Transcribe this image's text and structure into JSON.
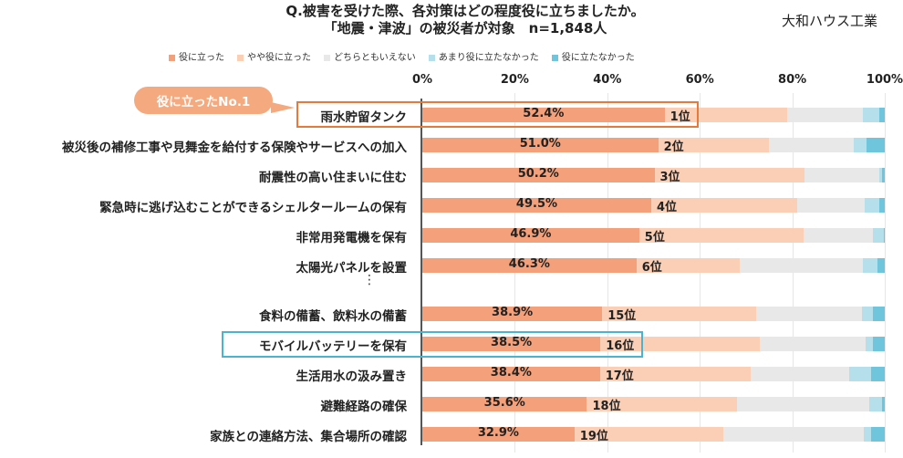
{
  "title_line1": "Q.被害を受けた際、各対策はどの程度役に立ちましたか。",
  "title_line2": "「地震・津波」の被災者が対象　n=1,848人",
  "brand": "大和ハウス工業",
  "callout": "役に立ったNo.1",
  "ellipsis": "⋮",
  "colors": {
    "s1": "#f4a07a",
    "s2": "#fbcfb5",
    "s3": "#e8e8e8",
    "s4": "#b5dfea",
    "s5": "#6ec5dc",
    "highlight_orange": "#e57a3c",
    "highlight_blue": "#4ab3cf"
  },
  "chart_data": {
    "type": "bar",
    "orientation": "horizontal",
    "stacked": true,
    "xlim": [
      0,
      100
    ],
    "ticks": [
      "0%",
      "20%",
      "40%",
      "60%",
      "80%",
      "100%"
    ],
    "series": [
      {
        "name": "役に立った",
        "color": "#f4a07a"
      },
      {
        "name": "やや役に立った",
        "color": "#fbcfb5"
      },
      {
        "name": "どちらともいえない",
        "color": "#e8e8e8"
      },
      {
        "name": "あまり役に立たなかった",
        "color": "#b5dfea"
      },
      {
        "name": "役に立たなかった",
        "color": "#6ec5dc"
      }
    ],
    "rows": [
      {
        "label": "雨水貯留タンク",
        "value_label": "52.4%",
        "rank": "1位",
        "values": [
          52.4,
          26.5,
          16.4,
          3.5,
          1.2
        ]
      },
      {
        "label": "被災後の補修工事や見舞金を給付する保険やサービスへの加入",
        "value_label": "51.0%",
        "rank": "2位",
        "values": [
          51.0,
          24.0,
          18.2,
          2.8,
          4.0
        ]
      },
      {
        "label": "耐震性の高い住まいに住む",
        "value_label": "50.2%",
        "rank": "3位",
        "values": [
          50.2,
          32.4,
          16.2,
          0.6,
          0.6
        ]
      },
      {
        "label": "緊急時に逃げ込むことができるシェルタールームの保有",
        "value_label": "49.5%",
        "rank": "4位",
        "values": [
          49.5,
          31.5,
          14.6,
          3.3,
          1.1
        ]
      },
      {
        "label": "非常用発電機を保有",
        "value_label": "46.9%",
        "rank": "5位",
        "values": [
          46.9,
          35.6,
          15.0,
          2.3,
          0.2
        ]
      },
      {
        "label": "太陽光パネルを設置",
        "value_label": "46.3%",
        "rank": "6位",
        "values": [
          46.3,
          22.4,
          26.6,
          3.2,
          1.5
        ]
      },
      {
        "label": "食料の備蓄、飲料水の備蓄",
        "value_label": "38.9%",
        "rank": "15位",
        "values": [
          38.9,
          33.3,
          22.9,
          2.4,
          2.5
        ]
      },
      {
        "label": "モバイルバッテリーを保有",
        "value_label": "38.5%",
        "rank": "16位",
        "values": [
          38.5,
          34.5,
          22.8,
          1.7,
          2.5
        ]
      },
      {
        "label": "生活用水の汲み置き",
        "value_label": "38.4%",
        "rank": "17位",
        "values": [
          38.4,
          32.6,
          21.4,
          4.7,
          2.9
        ]
      },
      {
        "label": "避難経路の確保",
        "value_label": "35.6%",
        "rank": "18位",
        "values": [
          35.6,
          32.5,
          28.5,
          2.8,
          0.6
        ]
      },
      {
        "label": "家族との連絡方法、集合場所の確認",
        "value_label": "32.9%",
        "rank": "19位",
        "values": [
          32.9,
          32.2,
          30.4,
          1.6,
          2.9
        ]
      }
    ]
  }
}
